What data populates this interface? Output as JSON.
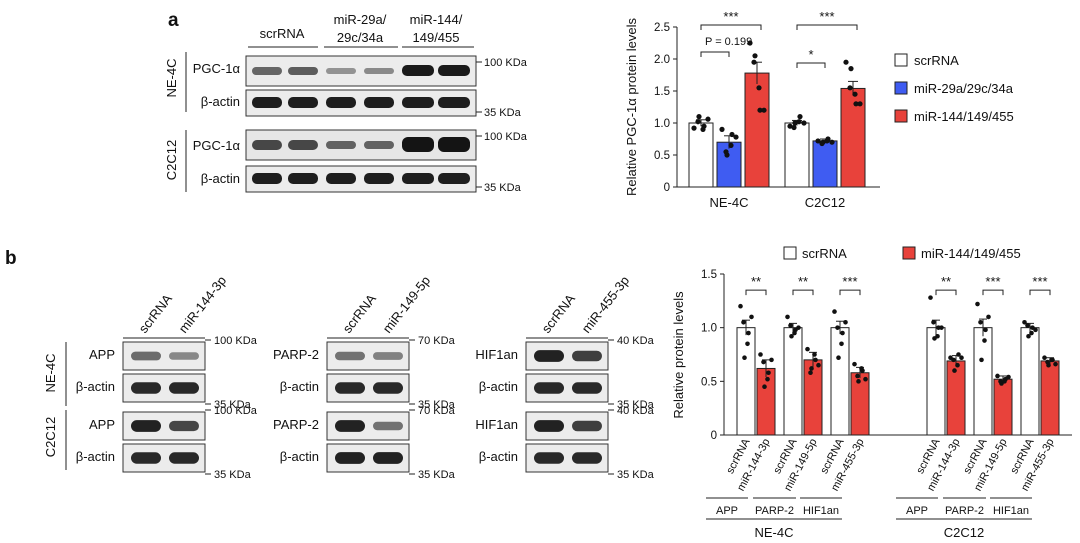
{
  "panels": {
    "a": "a",
    "b": "b"
  },
  "panel_a": {
    "blot": {
      "columns": [
        "scrRNA",
        "miR-29a/\n29c/34a",
        "miR-144/\n149/455"
      ],
      "groups": [
        {
          "cell": "NE-4C",
          "rows": [
            {
              "protein": "PGC-1α",
              "marker": "100 KDa"
            },
            {
              "protein": "β-actin",
              "marker": "35 KDa"
            }
          ]
        },
        {
          "cell": "C2C12",
          "rows": [
            {
              "protein": "PGC-1α",
              "marker": "100 KDa"
            },
            {
              "protein": "β-actin",
              "marker": "35 KDa"
            }
          ]
        }
      ]
    },
    "legend": [
      "scrRNA",
      "miR-29a/29c/34a",
      "miR-144/149/455"
    ],
    "sig_p": "P = 0.199"
  },
  "panel_b": {
    "blots": [
      {
        "lanes": [
          "scrRNA",
          "miR-144-3p"
        ],
        "groups": [
          {
            "cell": "NE-4C",
            "rows": [
              {
                "protein": "APP",
                "marker": "100 KDa"
              },
              {
                "protein": "β-actin",
                "marker": "35 KDa"
              }
            ]
          },
          {
            "cell": "C2C12",
            "rows": [
              {
                "protein": "APP",
                "marker": "100 KDa"
              },
              {
                "protein": "β-actin",
                "marker": "35 KDa"
              }
            ]
          }
        ]
      },
      {
        "lanes": [
          "scrRNA",
          "miR-149-5p"
        ],
        "groups": [
          {
            "rows": [
              {
                "protein": "PARP-2",
                "marker": "70 KDa"
              },
              {
                "protein": "β-actin",
                "marker": "35 KDa"
              }
            ]
          },
          {
            "rows": [
              {
                "protein": "PARP-2",
                "marker": "70 KDa"
              },
              {
                "protein": "β-actin",
                "marker": "35 KDa"
              }
            ]
          }
        ]
      },
      {
        "lanes": [
          "scrRNA",
          "miR-455-3p"
        ],
        "groups": [
          {
            "rows": [
              {
                "protein": "HIF1an",
                "marker": "40 KDa"
              },
              {
                "protein": "β-actin",
                "marker": "35 KDa"
              }
            ]
          },
          {
            "rows": [
              {
                "protein": "HIF1an",
                "marker": "40 KDa"
              },
              {
                "protein": "β-actin",
                "marker": "35 KDa"
              }
            ]
          }
        ]
      }
    ],
    "legend": [
      "scrRNA",
      "miR-144/149/455"
    ]
  },
  "colors": {
    "scr": "#ffffff",
    "mir29": "#3f5cf2",
    "mir144": "#e8423b",
    "edge": "#222222"
  },
  "chart_data": [
    {
      "type": "bar",
      "title": "",
      "xlabel": "",
      "ylabel": "Relative PGC-1α protein levels",
      "ylim": [
        0,
        2.5
      ],
      "yticks": [
        "0",
        "0.5",
        "1.0",
        "1.5",
        "2.0",
        "2.5"
      ],
      "categories": [
        "NE-4C",
        "C2C12"
      ],
      "series": [
        {
          "name": "scrRNA",
          "values": [
            1.0,
            1.0
          ],
          "errors": [
            0.05,
            0.04
          ],
          "points": [
            [
              0.92,
              1.1,
              0.95,
              1.02,
              0.9,
              1.06
            ],
            [
              0.95,
              1.0,
              1.1,
              0.93,
              1.02,
              1.0
            ]
          ]
        },
        {
          "name": "miR-29a/29c/34a",
          "values": [
            0.7,
            0.72
          ],
          "errors": [
            0.1,
            0.03
          ],
          "points": [
            [
              0.9,
              0.5,
              0.82,
              0.55,
              0.65,
              0.78
            ],
            [
              0.72,
              0.7,
              0.75,
              0.68,
              0.72,
              0.7
            ]
          ]
        },
        {
          "name": "miR-144/149/455",
          "values": [
            1.78,
            1.54
          ],
          "errors": [
            0.17,
            0.11
          ],
          "points": [
            [
              2.25,
              2.05,
              1.2,
              1.95,
              1.55,
              1.2
            ],
            [
              1.95,
              1.85,
              1.3,
              1.55,
              1.45,
              1.3
            ]
          ]
        }
      ],
      "significance": [
        {
          "label": "***",
          "group": 0,
          "from": 0,
          "to": 2
        },
        {
          "label": "",
          "group": 0,
          "from": 0,
          "to": 1,
          "note": "P = 0.199"
        },
        {
          "label": "***",
          "group": 1,
          "from": 0,
          "to": 2
        },
        {
          "label": "*",
          "group": 1,
          "from": 0,
          "to": 1
        }
      ]
    },
    {
      "type": "bar",
      "title": "",
      "xlabel": "",
      "ylabel": "Relative protein levels",
      "ylim": [
        0,
        1.5
      ],
      "yticks": [
        "0",
        "0.5",
        "1.0",
        "1.5"
      ],
      "cells": [
        "NE-4C",
        "C2C12"
      ],
      "proteins": [
        "APP",
        "PARP-2",
        "HIF1an"
      ],
      "lane_labels": [
        [
          "scrRNA",
          "miR-144-3p"
        ],
        [
          "scrRNA",
          "miR-149-5p"
        ],
        [
          "scrRNA",
          "miR-455-3p"
        ]
      ],
      "series": [
        {
          "name": "scrRNA",
          "values": [
            1.0,
            1.0,
            1.0,
            1.0,
            1.0,
            1.0
          ],
          "errors": [
            0.07,
            0.04,
            0.06,
            0.07,
            0.08,
            0.04
          ],
          "points": [
            [
              1.2,
              0.72,
              0.95,
              1.05,
              0.85,
              1.1
            ],
            [
              1.1,
              0.92,
              0.98,
              1.02,
              0.95,
              1.0
            ],
            [
              1.15,
              0.72,
              0.95,
              1.0,
              0.85,
              1.05
            ],
            [
              1.28,
              0.9,
              1.0,
              1.05,
              0.92,
              1.0
            ],
            [
              1.22,
              0.7,
              0.98,
              1.05,
              0.88,
              1.1
            ],
            [
              1.05,
              0.92,
              1.0,
              1.02,
              0.95,
              0.98
            ]
          ]
        },
        {
          "name": "miR-144/149/455",
          "values": [
            0.62,
            0.7,
            0.58,
            0.69,
            0.52,
            0.69
          ],
          "errors": [
            0.08,
            0.07,
            0.05,
            0.05,
            0.03,
            0.03
          ],
          "points": [
            [
              0.75,
              0.45,
              0.58,
              0.68,
              0.52,
              0.7
            ],
            [
              0.8,
              0.62,
              0.7,
              0.58,
              0.75,
              0.65
            ],
            [
              0.66,
              0.5,
              0.6,
              0.55,
              0.62,
              0.52
            ],
            [
              0.72,
              0.6,
              0.75,
              0.7,
              0.65,
              0.72
            ],
            [
              0.55,
              0.48,
              0.52,
              0.5,
              0.5,
              0.54
            ],
            [
              0.72,
              0.65,
              0.7,
              0.68,
              0.7,
              0.66
            ]
          ]
        }
      ],
      "significance": [
        "**",
        "**",
        "***",
        "**",
        "***",
        "***"
      ]
    }
  ]
}
